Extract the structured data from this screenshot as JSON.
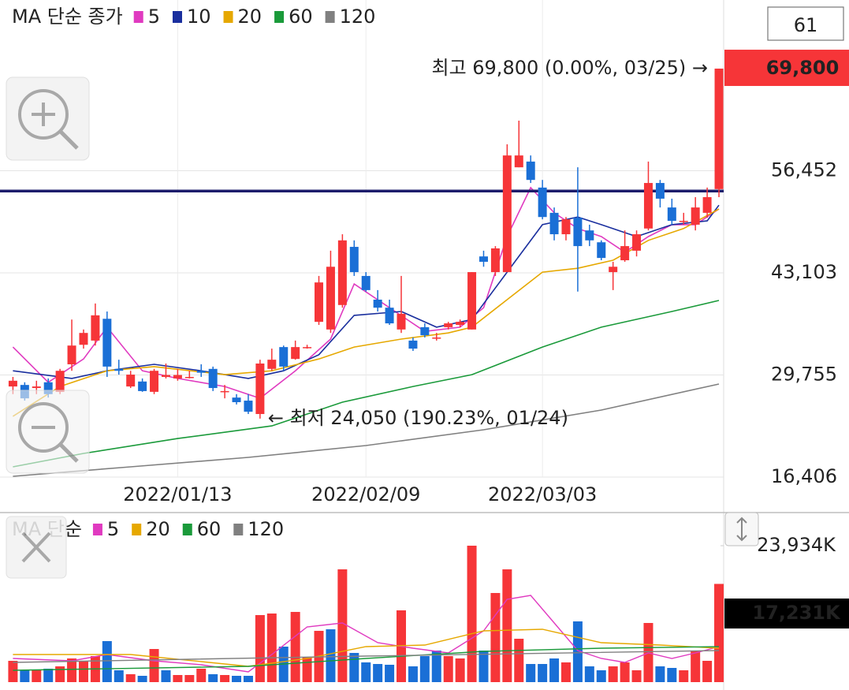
{
  "chart_data": [
    {
      "type": "candlestick",
      "legend_title": "MA 단순 종가",
      "xlim": [
        -1.1,
        60.4
      ],
      "ylim": [
        16406,
        78770
      ],
      "xticks": [
        {
          "value": 14,
          "label": "2022/01/13"
        },
        {
          "value": 30,
          "label": "2022/02/09"
        },
        {
          "value": 45,
          "label": "2022/03/03"
        }
      ],
      "yticks": [
        {
          "value": 16406,
          "label": "16,406"
        },
        {
          "value": 29755,
          "label": "29,755"
        },
        {
          "value": 43103,
          "label": "43,103"
        },
        {
          "value": 56452,
          "label": "56,452"
        }
      ],
      "grid": true,
      "up_color": "#f63538",
      "down_color": "#1a6fd6",
      "open": [
        28250,
        28450,
        28050,
        28800,
        27550,
        31150,
        33700,
        34250,
        37100,
        30550,
        28250,
        28900,
        27550,
        29500,
        29300,
        29500,
        30300,
        30550,
        27550,
        26800,
        26400,
        24650,
        30550,
        33400,
        31850,
        33400,
        36700,
        35700,
        38900,
        46500,
        42700,
        39600,
        38550,
        35700,
        34250,
        36000,
        34650,
        36000,
        36300,
        35700,
        45250,
        43200,
        43200,
        56900,
        57650,
        54250,
        50950,
        48150,
        50300,
        48650,
        47100,
        43200,
        44750,
        46000,
        48900,
        54850,
        51650,
        49900,
        49400,
        50950,
        54050
      ],
      "high": [
        29500,
        28800,
        29000,
        29300,
        30550,
        37000,
        35700,
        39100,
        38050,
        31750,
        30300,
        29300,
        30550,
        31250,
        30550,
        30300,
        31150,
        30850,
        28450,
        27250,
        27250,
        31750,
        33200,
        33600,
        34250,
        33700,
        42700,
        46000,
        48150,
        47350,
        43200,
        40850,
        39600,
        42700,
        34650,
        36500,
        35250,
        36700,
        37000,
        43200,
        46000,
        46600,
        59900,
        63000,
        58450,
        55250,
        51650,
        50400,
        56900,
        49400,
        47350,
        44550,
        48650,
        48650,
        57650,
        55250,
        52800,
        50950,
        53000,
        54250,
        69800
      ],
      "low": [
        27250,
        26400,
        27250,
        26800,
        27250,
        30300,
        33200,
        33600,
        29500,
        29800,
        28050,
        27550,
        27250,
        29300,
        29000,
        29300,
        29500,
        27650,
        26700,
        25900,
        24650,
        24050,
        30300,
        30300,
        31750,
        33200,
        36300,
        35250,
        38550,
        42700,
        40650,
        38050,
        36300,
        35250,
        32900,
        34650,
        34250,
        35700,
        36000,
        35700,
        43900,
        42700,
        43200,
        56900,
        54850,
        50100,
        47350,
        47350,
        40650,
        46600,
        44750,
        40850,
        44550,
        45250,
        48650,
        51650,
        49400,
        49400,
        48650,
        50300,
        53000
      ],
      "close": [
        29000,
        26700,
        28250,
        27250,
        30300,
        33600,
        35250,
        37550,
        30850,
        30300,
        29800,
        27650,
        30300,
        29750,
        29750,
        29500,
        30050,
        28050,
        27650,
        26200,
        24950,
        31250,
        31750,
        30850,
        33400,
        33400,
        41850,
        43900,
        47350,
        43200,
        40850,
        38550,
        36500,
        37750,
        33200,
        34950,
        34650,
        36500,
        36700,
        43200,
        44550,
        46300,
        58450,
        58450,
        55250,
        50400,
        48150,
        50100,
        46600,
        47350,
        45050,
        43900,
        46600,
        48150,
        54850,
        52800,
        49900,
        49900,
        51650,
        53000,
        69800
      ],
      "series": [
        {
          "name": "5",
          "color": "#e03ac0",
          "x": [
            0,
            3,
            6,
            8,
            11,
            14,
            18,
            21,
            24,
            27,
            29,
            32,
            35,
            38,
            40,
            42,
            44,
            46,
            48,
            50,
            52,
            54,
            56,
            58,
            60
          ],
          "values": [
            33400,
            28800,
            31850,
            36000,
            30300,
            29300,
            28250,
            26700,
            30300,
            34450,
            41650,
            38550,
            35450,
            36000,
            38550,
            47850,
            54250,
            50950,
            48900,
            47850,
            45800,
            47850,
            49400,
            49400,
            51450
          ]
        },
        {
          "name": "10",
          "color": "#1a2f9e",
          "x": [
            0,
            5,
            8,
            12,
            16,
            20,
            23,
            26,
            29,
            33,
            36,
            39,
            42,
            45,
            48,
            50,
            53,
            56,
            59,
            60
          ],
          "values": [
            30300,
            29300,
            30300,
            31150,
            30300,
            29300,
            30300,
            32400,
            37550,
            38050,
            36000,
            37000,
            43200,
            49400,
            50400,
            49400,
            47850,
            49400,
            49900,
            51950
          ]
        },
        {
          "name": "20",
          "color": "#e6a800",
          "x": [
            0,
            4,
            8,
            12,
            18,
            22,
            26,
            29,
            33,
            37,
            39,
            42,
            45,
            48,
            51,
            54,
            57,
            60
          ],
          "values": [
            24350,
            28250,
            30300,
            30850,
            29800,
            30300,
            31850,
            33400,
            34450,
            35250,
            36000,
            39600,
            43200,
            43700,
            44750,
            47350,
            48900,
            51450
          ]
        },
        {
          "name": "60",
          "color": "#1a9a3a",
          "x": [
            0,
            6,
            14,
            22,
            28,
            34,
            39,
            45,
            50,
            56,
            60
          ],
          "values": [
            17750,
            19500,
            21450,
            23100,
            26200,
            28250,
            29800,
            33400,
            36000,
            38050,
            39500
          ]
        },
        {
          "name": "120",
          "color": "#808080",
          "x": [
            0,
            10,
            20,
            30,
            40,
            50,
            60
          ],
          "values": [
            16510,
            17750,
            18980,
            20530,
            22590,
            25170,
            28570
          ]
        }
      ],
      "reference_line": {
        "value": 53800,
        "color": "#1c1c6b"
      },
      "annotations": [
        {
          "text": "최고 69,800 (0.00%, 03/25) →",
          "color": "#c8102e"
        },
        {
          "text": "← 최저 24,050 (190.23%, 01/24)",
          "color": "#1c4fd0"
        }
      ],
      "price_tag": {
        "value": 69800,
        "label": "69,800",
        "color": "#f63538"
      },
      "visible_count": 61
    },
    {
      "type": "volume",
      "legend_title": "MA 단순",
      "xlim": [
        -1.1,
        60.4
      ],
      "ylim": [
        0,
        29744
      ],
      "yticks": [
        {
          "value": 23934,
          "label": "23,934K"
        }
      ],
      "palette": {
        "up": "#f63538",
        "down": "#1a6fd6"
      },
      "values": [
        3735,
        2075,
        2075,
        2350,
        2765,
        4150,
        3735,
        4565,
        7195,
        2075,
        1385,
        1105,
        5810,
        2075,
        1245,
        1245,
        2350,
        1385,
        1245,
        1105,
        1105,
        11760,
        12035,
        6225,
        12315,
        4425,
        8995,
        9270,
        19785,
        5120,
        3460,
        3180,
        3045,
        12590,
        2765,
        4565,
        5535,
        4565,
        4150,
        23934,
        5535,
        15635,
        19785,
        7610,
        3180,
        3180,
        4150,
        3460,
        10655,
        2765,
        2075,
        2765,
        3460,
        2075,
        10375,
        2765,
        2490,
        2075,
        5535,
        3735,
        17231
      ],
      "directions": [
        "up",
        "down",
        "up",
        "down",
        "up",
        "up",
        "up",
        "up",
        "down",
        "down",
        "up",
        "down",
        "up",
        "down",
        "up",
        "up",
        "up",
        "down",
        "up",
        "down",
        "down",
        "up",
        "up",
        "down",
        "up",
        "up",
        "up",
        "down",
        "up",
        "down",
        "down",
        "down",
        "down",
        "up",
        "down",
        "down",
        "down",
        "up",
        "up",
        "up",
        "down",
        "up",
        "up",
        "up",
        "down",
        "down",
        "down",
        "up",
        "down",
        "down",
        "down",
        "up",
        "up",
        "up",
        "up",
        "down",
        "down",
        "up",
        "up",
        "up",
        "up"
      ],
      "series": [
        {
          "name": "5",
          "color": "#e03ac0",
          "x": [
            0,
            5,
            8,
            12,
            16,
            20,
            22,
            25,
            28,
            31,
            34,
            37,
            40,
            42,
            44,
            46,
            48,
            50,
            52,
            54,
            56,
            58,
            60
          ],
          "values": [
            4150,
            3735,
            4840,
            3735,
            3045,
            1800,
            4840,
            9685,
            10375,
            6920,
            5950,
            5120,
            8990,
            14525,
            15220,
            10375,
            5535,
            4150,
            3460,
            5120,
            4150,
            5120,
            6225
          ]
        },
        {
          "name": "20",
          "color": "#e6a800",
          "x": [
            0,
            10,
            20,
            25,
            30,
            35,
            40,
            45,
            50,
            55,
            60
          ],
          "values": [
            4840,
            4840,
            2770,
            4150,
            6225,
            6500,
            8990,
            9270,
            6920,
            6500,
            5950
          ]
        },
        {
          "name": "60",
          "color": "#1a9a3a",
          "x": [
            0,
            20,
            30,
            40,
            50,
            60
          ],
          "values": [
            2075,
            2770,
            4150,
            5395,
            5950,
            6225
          ]
        },
        {
          "name": "120",
          "color": "#808080",
          "x": [
            0,
            30,
            60
          ],
          "values": [
            3460,
            4565,
            5535
          ]
        }
      ],
      "price_tag": {
        "value": 17231,
        "label": "17,231K",
        "color": "#000000"
      }
    }
  ]
}
